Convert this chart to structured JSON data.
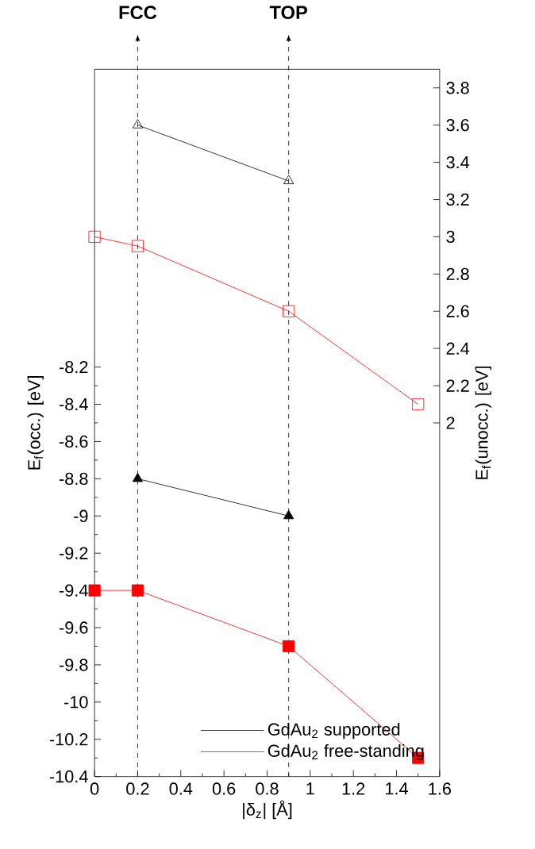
{
  "chart_data": {
    "type": "line",
    "xlabel": "|δ$_{z}$| [Å]",
    "ylabel": "E$_{f}$(occ.) [eV]",
    "y2label": "E$_{f}$(unocc.) [eV]",
    "xlim": [
      0,
      1.6
    ],
    "xticks": [
      0,
      0.2,
      0.4,
      0.6,
      0.8,
      1,
      1.2,
      1.4,
      1.6
    ],
    "ylim": [
      -10.4,
      -6.6
    ],
    "yticks": [
      -10.4,
      -10.2,
      -10,
      -9.8,
      -9.6,
      -9.4,
      -9.2,
      -9,
      -8.8,
      -8.6,
      -8.4,
      -8.2
    ],
    "y2lim": [
      0.1,
      3.9
    ],
    "y2ticks": [
      2,
      2.2,
      2.4,
      2.6,
      2.8,
      3,
      3.2,
      3.4,
      3.6,
      3.8
    ],
    "legend": "bottom right",
    "line_style": "solid",
    "ref_lines": [
      {
        "axis": "x",
        "value": 0.2,
        "label": "FCC",
        "line_style": "dashed",
        "color": "#000000"
      },
      {
        "axis": "x",
        "value": 0.9,
        "label": "TOP",
        "line_style": "dashed",
        "color": "#000000"
      }
    ],
    "series": [
      {
        "name": "GdAu$_{2}$ supported",
        "color": "#000000",
        "marker": "triangle",
        "x": [
          0.2,
          0.9
        ],
        "values": [
          -8.8,
          -9.0
        ]
      },
      {
        "name": "GdAu$_{2}$ free-standing",
        "color": "#ff0000",
        "marker": "square",
        "x": [
          0,
          0.2,
          0.9,
          1.5
        ],
        "values": [
          -9.4,
          -9.4,
          -9.7,
          -10.3
        ]
      },
      {
        "color": "#000000",
        "marker": "triangle",
        "axis": "y2",
        "x": [
          0.2,
          0.9
        ],
        "values": [
          3.6,
          3.3
        ]
      },
      {
        "color": "#ff0000",
        "marker": "square",
        "axis": "y2",
        "x": [
          0,
          0.2,
          0.9,
          1.5
        ],
        "values": [
          3.0,
          2.95,
          2.6,
          2.1
        ]
      }
    ]
  }
}
